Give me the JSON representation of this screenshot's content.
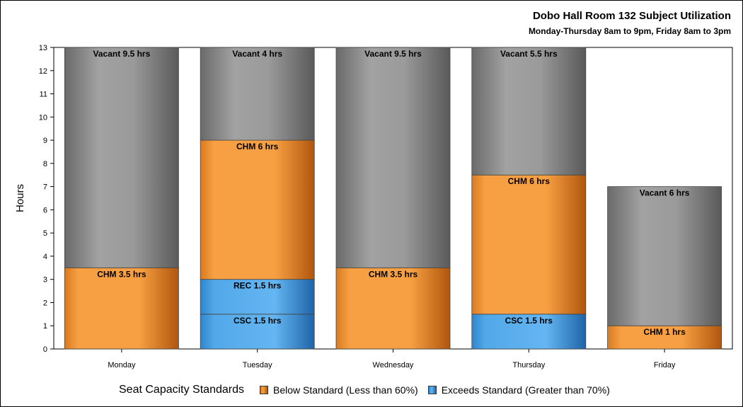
{
  "title": "Dobo Hall Room 132 Subject Utilization",
  "subtitle": "Monday-Thursday 8am to 9pm, Friday 8am to 3pm",
  "legend": {
    "title": "Seat Capacity Standards",
    "items": [
      {
        "label": "Below Standard (Less than 60%)",
        "color": "#f7a043"
      },
      {
        "label": "Exceeds Standard (Greater than 70%)",
        "color": "#52a8e8"
      }
    ]
  },
  "colors": {
    "orange": "#f7a043",
    "blue": "#52a8e8",
    "gray": "#9c9c9c"
  },
  "chart_data": {
    "type": "bar",
    "stacked": true,
    "ylabel": "Hours",
    "xlabel": "",
    "ylim": [
      0,
      13
    ],
    "yticks": [
      0,
      1,
      2,
      3,
      4,
      5,
      6,
      7,
      8,
      9,
      10,
      11,
      12,
      13
    ],
    "grid": false,
    "legend_position": "bottom",
    "categories": [
      "Monday",
      "Tuesday",
      "Wednesday",
      "Thursday",
      "Friday"
    ],
    "bars": [
      {
        "category": "Monday",
        "segments": [
          {
            "label": "CHM 3.5 hrs",
            "value": 3.5,
            "kind": "below"
          },
          {
            "label": "Vacant 9.5 hrs",
            "value": 9.5,
            "kind": "vacant"
          }
        ]
      },
      {
        "category": "Tuesday",
        "segments": [
          {
            "label": "CSC 1.5 hrs",
            "value": 1.5,
            "kind": "exceeds"
          },
          {
            "label": "REC 1.5 hrs",
            "value": 1.5,
            "kind": "exceeds"
          },
          {
            "label": "CHM 6 hrs",
            "value": 6,
            "kind": "below"
          },
          {
            "label": "Vacant 4 hrs",
            "value": 4,
            "kind": "vacant"
          }
        ]
      },
      {
        "category": "Wednesday",
        "segments": [
          {
            "label": "CHM 3.5 hrs",
            "value": 3.5,
            "kind": "below"
          },
          {
            "label": "Vacant 9.5 hrs",
            "value": 9.5,
            "kind": "vacant"
          }
        ]
      },
      {
        "category": "Thursday",
        "segments": [
          {
            "label": "CSC 1.5 hrs",
            "value": 1.5,
            "kind": "exceeds"
          },
          {
            "label": "CHM 6 hrs",
            "value": 6,
            "kind": "below"
          },
          {
            "label": "Vacant 5.5 hrs",
            "value": 5.5,
            "kind": "vacant"
          }
        ]
      },
      {
        "category": "Friday",
        "segments": [
          {
            "label": "CHM 1 hrs",
            "value": 1,
            "kind": "below"
          },
          {
            "label": "Vacant 6 hrs",
            "value": 6,
            "kind": "vacant"
          }
        ]
      }
    ]
  }
}
